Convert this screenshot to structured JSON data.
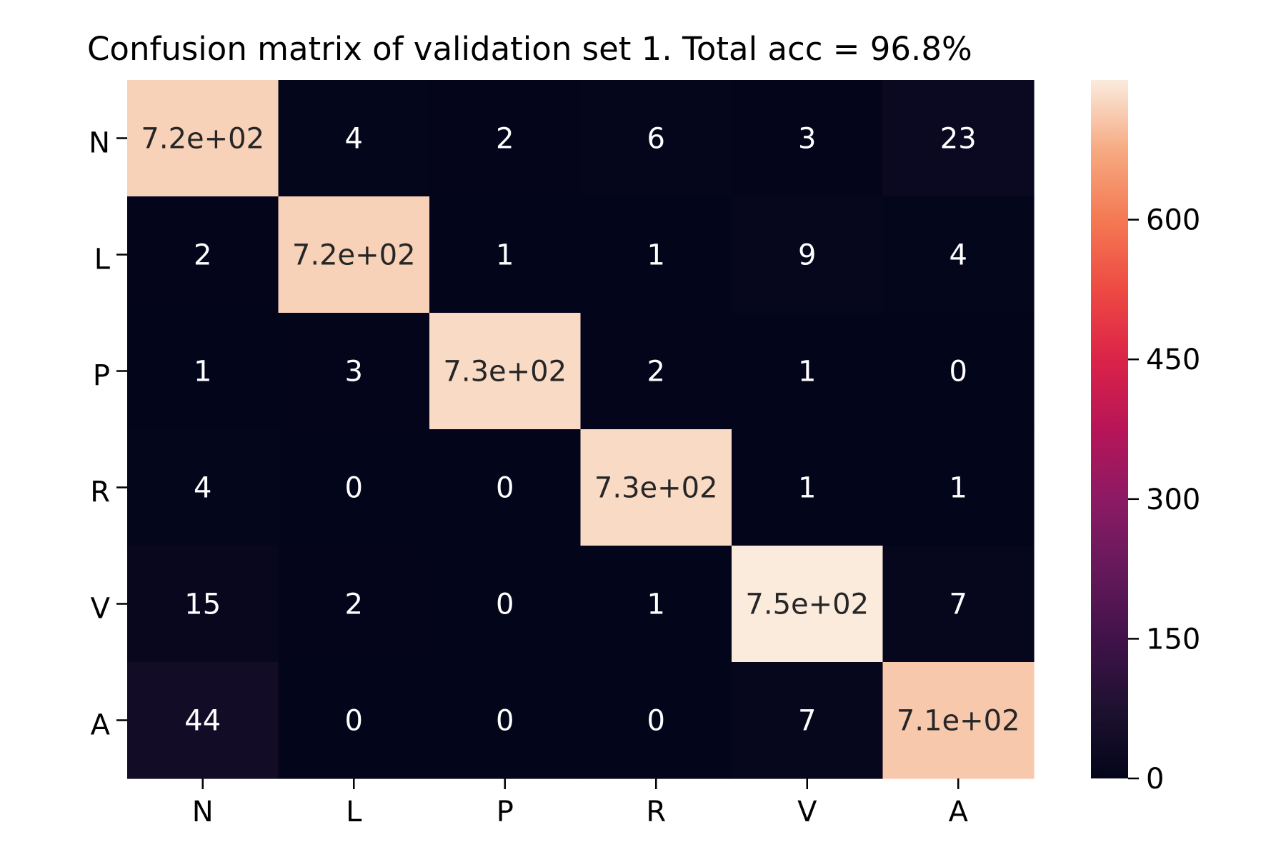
{
  "chart_data": {
    "type": "heatmap",
    "title": "Confusion matrix of validation set 1. Total acc = 96.8%",
    "xlabel": "",
    "ylabel": "",
    "x_categories": [
      "N",
      "L",
      "P",
      "R",
      "V",
      "A"
    ],
    "y_categories": [
      "N",
      "L",
      "P",
      "R",
      "V",
      "A"
    ],
    "values": [
      [
        720,
        4,
        2,
        6,
        3,
        23
      ],
      [
        2,
        720,
        1,
        1,
        9,
        4
      ],
      [
        1,
        3,
        730,
        2,
        1,
        0
      ],
      [
        4,
        0,
        0,
        730,
        1,
        1
      ],
      [
        15,
        2,
        0,
        1,
        750,
        7
      ],
      [
        44,
        0,
        0,
        0,
        7,
        710
      ]
    ],
    "cell_labels": [
      [
        "7.2e+02",
        "4",
        "2",
        "6",
        "3",
        "23"
      ],
      [
        "2",
        "7.2e+02",
        "1",
        "1",
        "9",
        "4"
      ],
      [
        "1",
        "3",
        "7.3e+02",
        "2",
        "1",
        "0"
      ],
      [
        "4",
        "0",
        "0",
        "7.3e+02",
        "1",
        "1"
      ],
      [
        "15",
        "2",
        "0",
        "1",
        "7.5e+02",
        "7"
      ],
      [
        "44",
        "0",
        "0",
        "0",
        "7",
        "7.1e+02"
      ]
    ],
    "colorbar": {
      "colormap": "rocket",
      "range": [
        0,
        750
      ],
      "ticks": [
        0,
        150,
        300,
        450,
        600
      ],
      "tick_labels": [
        "0",
        "150",
        "300",
        "450",
        "600"
      ]
    },
    "grid": false,
    "legend": "none",
    "colors": {
      "light_text": "#ffffff",
      "dark_text": "#262626",
      "axis": "#000000"
    }
  }
}
